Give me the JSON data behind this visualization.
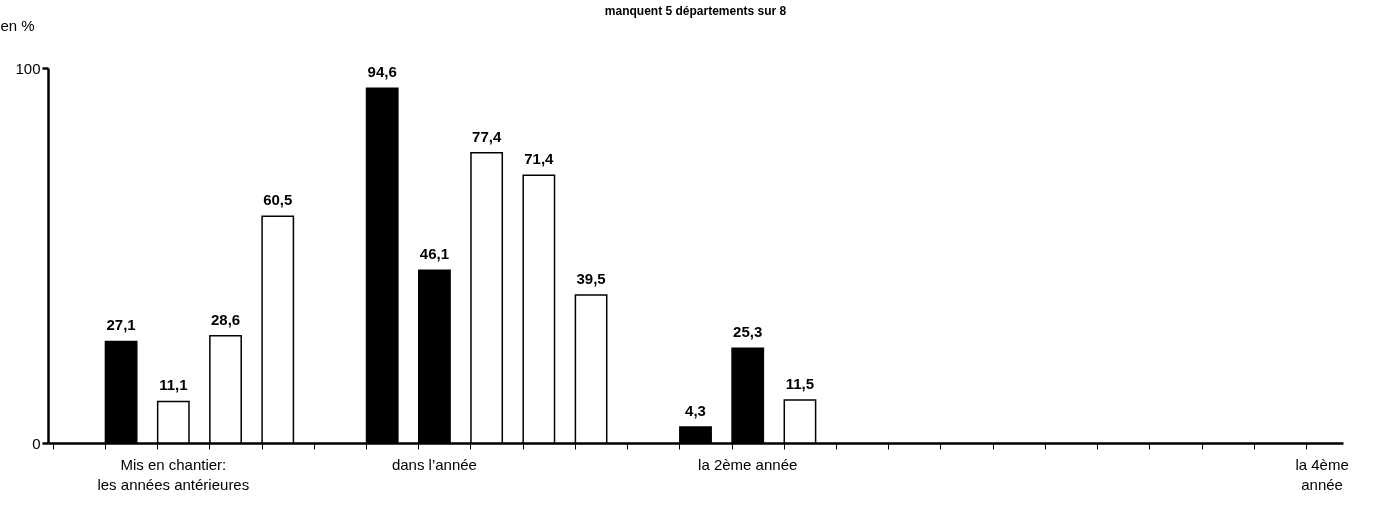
{
  "chart_data": {
    "type": "bar",
    "title": "manquent 5 départements sur 8",
    "ylabel": "en %",
    "categories": [
      null,
      null,
      "Mis en chantier:\nles années antérieures",
      null,
      null,
      null,
      null,
      "dans l’année",
      null,
      null,
      null,
      null,
      null,
      "la 2ème année",
      null,
      null,
      null,
      null,
      null,
      null,
      null,
      null,
      null,
      null,
      "la 4ème\nannée"
    ],
    "values": [
      null,
      27.1,
      11.1,
      28.6,
      60.5,
      null,
      94.6,
      46.1,
      77.4,
      71.4,
      39.5,
      null,
      4.3,
      25.3,
      11.5,
      null,
      null,
      null,
      null,
      null,
      null,
      null,
      null,
      null,
      null
    ],
    "colors": [
      null,
      "#000000",
      "#ffffff",
      "#ffffff",
      "#ffffff",
      null,
      "#000000",
      "#000000",
      "#ffffff",
      "#ffffff",
      "#ffffff",
      null,
      "#000000",
      "#000000",
      "#ffffff",
      null,
      null,
      null,
      null,
      null,
      null,
      null,
      null,
      null,
      null
    ],
    "value_labels": [
      null,
      "27,1",
      "11,1",
      "28,6",
      "60,5",
      null,
      "94,6",
      "46,1",
      "77,4",
      "71,4",
      "39,5",
      null,
      "4,3",
      "25,3",
      "11,5",
      null,
      null,
      null,
      null,
      null,
      null,
      null,
      null,
      null,
      null
    ],
    "ylim": [
      0,
      100
    ],
    "yticks": [
      0,
      100
    ],
    "grid": false
  }
}
